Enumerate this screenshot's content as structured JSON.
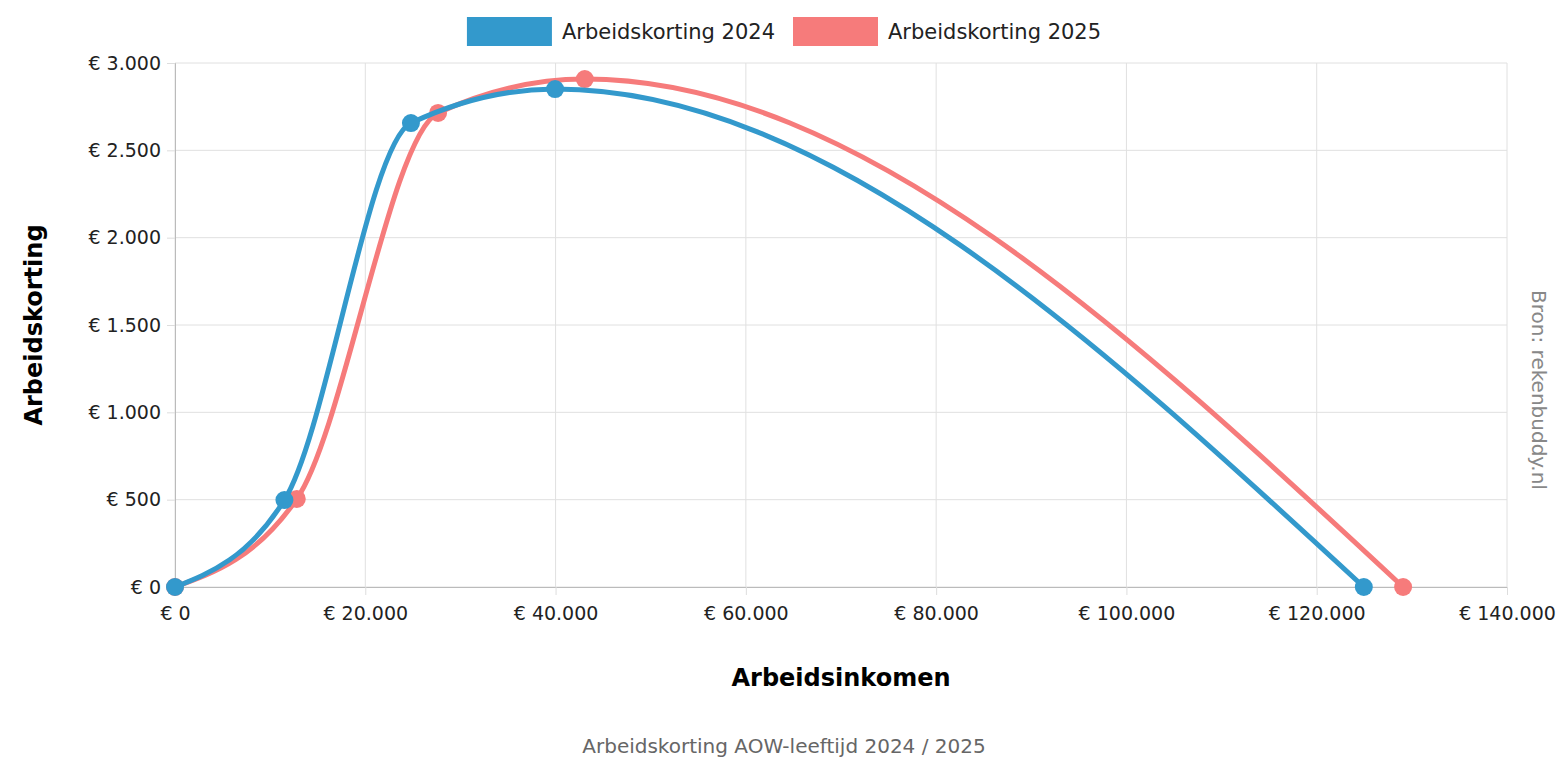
{
  "chart_data": {
    "type": "line",
    "title": "Arbeidskorting AOW-leeftijd 2024 / 2025",
    "x_label": "Arbeidsinkomen",
    "y_label": "Arbeidskorting",
    "annotations": [
      "Bron: rekenbuddy.nl"
    ],
    "series": [
      {
        "name": "Arbeidskorting 2024",
        "color": "#3399cc",
        "marker": "circle",
        "x": [
          0,
          11500,
          24800,
          39950,
          124950
        ],
        "values": [
          0,
          498,
          2656,
          2851,
          0
        ]
      },
      {
        "name": "Arbeidskorting 2025",
        "color": "#f67b7b",
        "marker": "circle",
        "x": [
          0,
          12800,
          27650,
          43070,
          129080
        ],
        "values": [
          0,
          504,
          2714,
          2908,
          0
        ]
      }
    ],
    "xlim": [
      0,
      140000
    ],
    "xticks": [
      {
        "value": 0,
        "label": "€ 0"
      },
      {
        "value": 20000,
        "label": "€ 20.000"
      },
      {
        "value": 40000,
        "label": "€ 40.000"
      },
      {
        "value": 60000,
        "label": "€ 60.000"
      },
      {
        "value": 80000,
        "label": "€ 80.000"
      },
      {
        "value": 100000,
        "label": "€ 100.000"
      },
      {
        "value": 120000,
        "label": "€ 120.000"
      },
      {
        "value": 140000,
        "label": "€ 140.000"
      }
    ],
    "ylim": [
      0,
      3000
    ],
    "yticks": [
      {
        "value": 0,
        "label": "€ 0"
      },
      {
        "value": 500,
        "label": "€ 500"
      },
      {
        "value": 1000,
        "label": "€ 1.000"
      },
      {
        "value": 1500,
        "label": "€ 1.500"
      },
      {
        "value": 2000,
        "label": "€ 2.000"
      },
      {
        "value": 2500,
        "label": "€ 2.500"
      },
      {
        "value": 3000,
        "label": "€ 3.000"
      }
    ],
    "grid": true,
    "legend": "top"
  }
}
